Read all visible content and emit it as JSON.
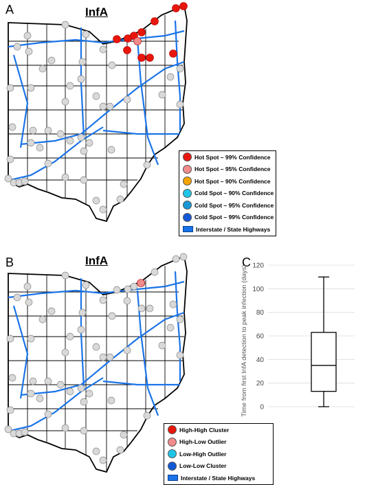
{
  "panels": {
    "a": {
      "letter": "A",
      "title": "InfA"
    },
    "b": {
      "letter": "B",
      "title": "InfA"
    },
    "c": {
      "letter": "C"
    }
  },
  "legend_a": [
    {
      "label": "Hot Spot – 99% Confidence",
      "color": "#e8160c",
      "kind": "dot"
    },
    {
      "label": "Hot Spot – 95% Confidence",
      "color": "#f28b8b",
      "kind": "dot"
    },
    {
      "label": "Hot Spot – 90% Confidence",
      "color": "#f6a400",
      "kind": "dot"
    },
    {
      "label": "Cold Spot – 90% Confidence",
      "color": "#1fc6e8",
      "kind": "dot"
    },
    {
      "label": "Cold Spot – 95% Confidence",
      "color": "#1a96d4",
      "kind": "dot"
    },
    {
      "label": "Cold Spot – 99% Confidence",
      "color": "#1258d6",
      "kind": "dot"
    },
    {
      "label": "Interstate / State Highways",
      "color": "#1a73e8",
      "kind": "bar"
    }
  ],
  "legend_b": [
    {
      "label": "High-High Cluster",
      "color": "#e8160c",
      "kind": "dot"
    },
    {
      "label": "High-Low Outlier",
      "color": "#f28b8b",
      "kind": "dot"
    },
    {
      "label": "Low-High Outlier",
      "color": "#1fc6e8",
      "kind": "dot"
    },
    {
      "label": "Low-Low Cluster",
      "color": "#1258d6",
      "kind": "dot"
    },
    {
      "label": "Interstate / State Highways",
      "color": "#1a73e8",
      "kind": "bar"
    }
  ],
  "colors": {
    "neutral_site": "#d9d9d9",
    "hot99": "#e8160c",
    "hot95": "#f28b8b",
    "highway": "#1a73e8"
  },
  "chart_data": {
    "type": "box",
    "ylabel": "Time from first InfA detection to peak infection (days)",
    "ylim": [
      0,
      120
    ],
    "yticks": [
      0,
      20,
      40,
      60,
      80,
      100,
      120
    ],
    "grid": true,
    "box": {
      "min": 0,
      "q1": 13,
      "median": 35,
      "q3": 63,
      "max": 110
    }
  }
}
